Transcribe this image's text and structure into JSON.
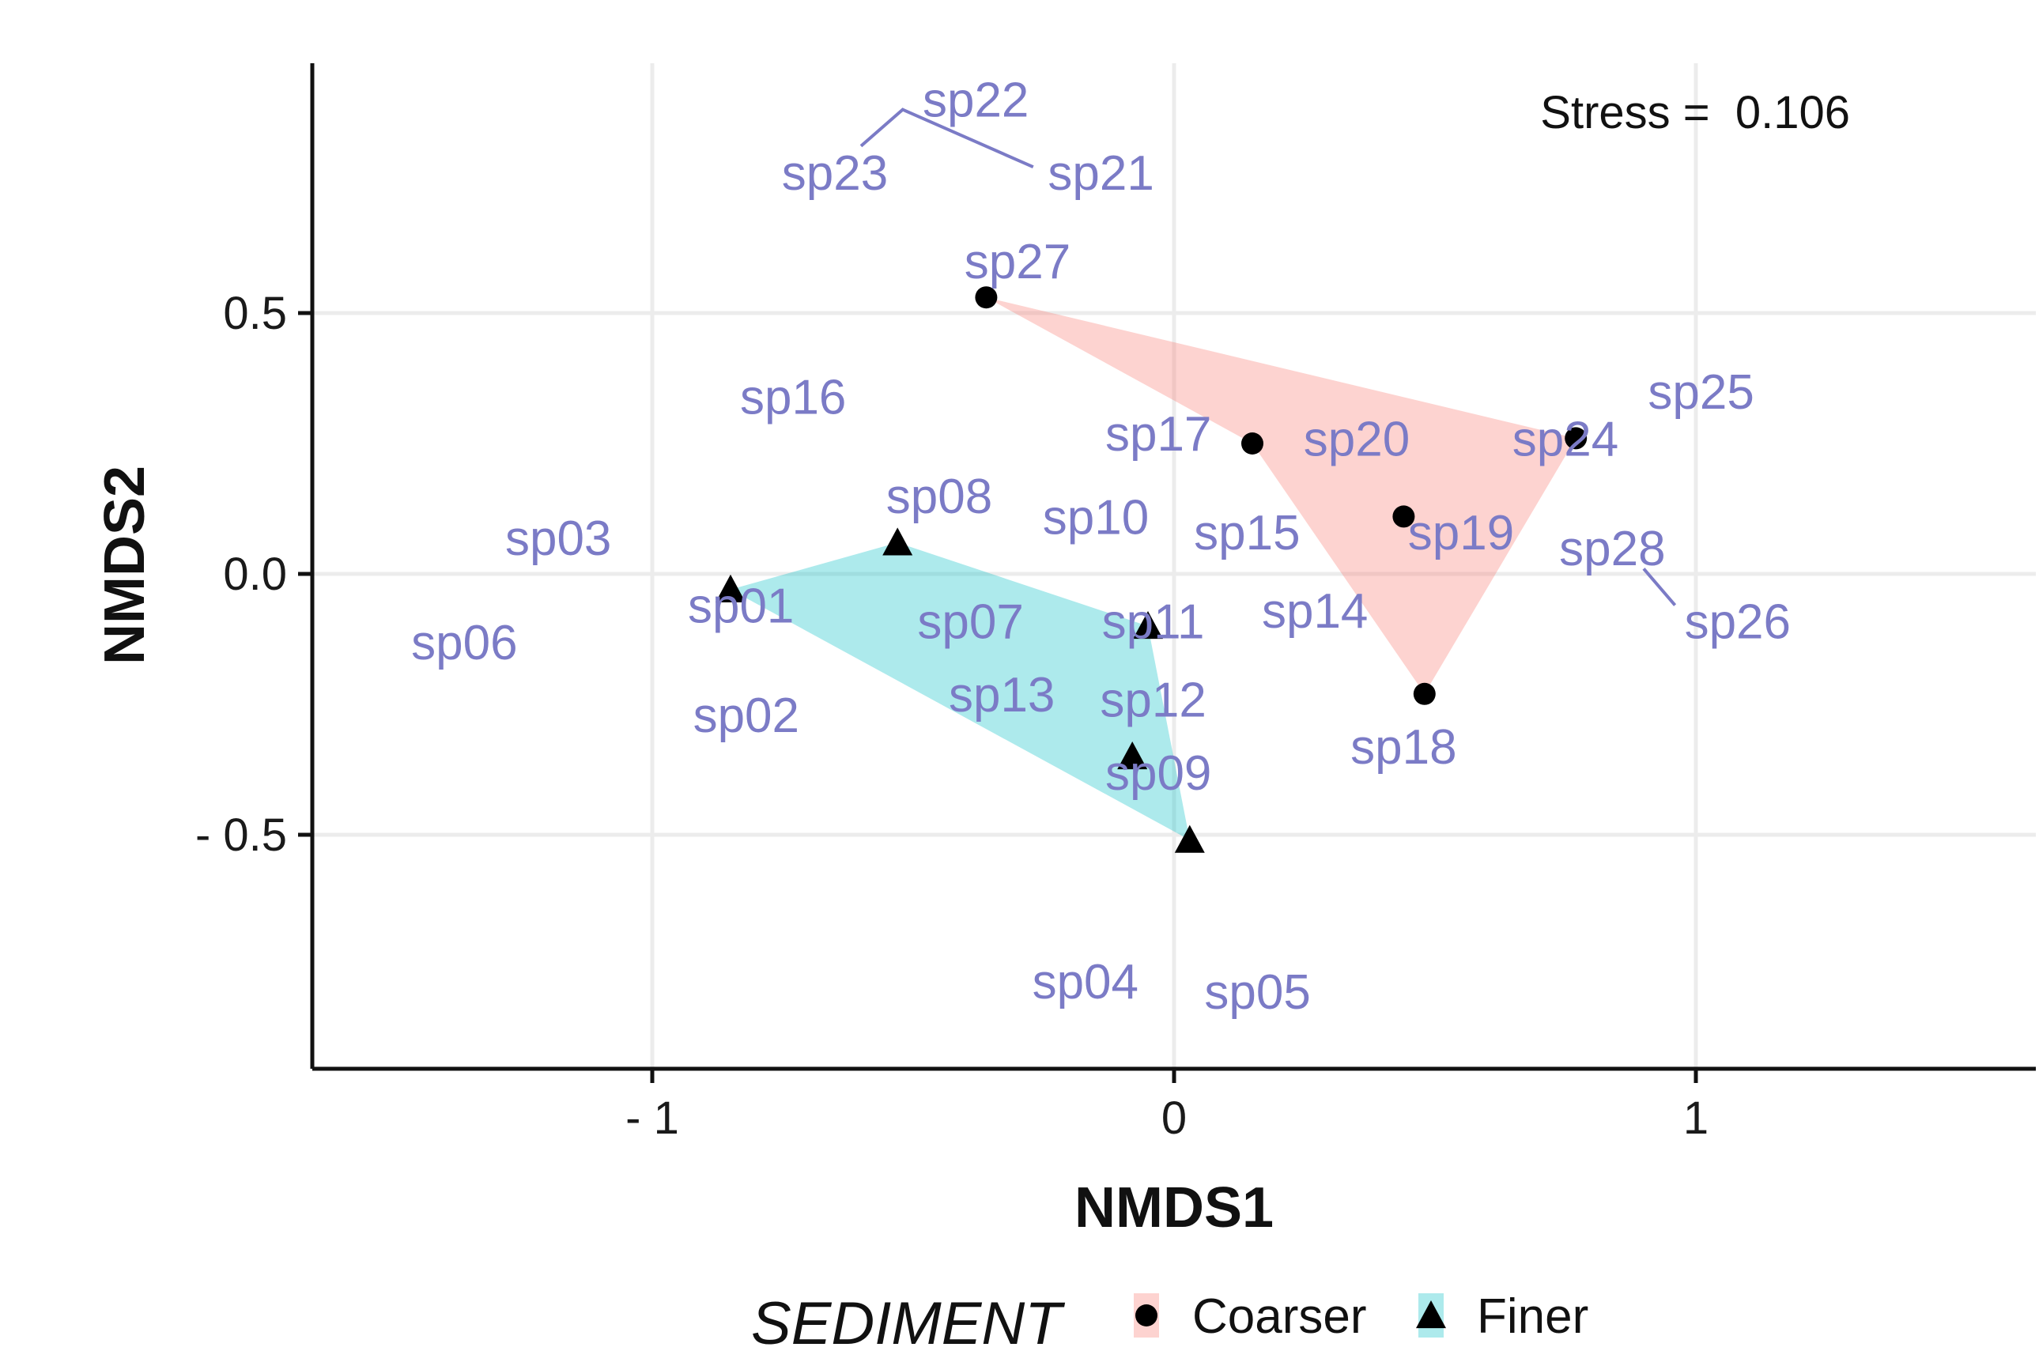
{
  "chart_data": {
    "type": "scatter",
    "title": "",
    "xlabel": "NMDS1",
    "ylabel": "NMDS2",
    "xlim": [
      -1.65,
      1.65
    ],
    "ylim": [
      -0.95,
      0.98
    ],
    "grid": true,
    "x_ticks": [
      {
        "value": -1,
        "label": "- 1"
      },
      {
        "value": 0,
        "label": "0"
      },
      {
        "value": 1,
        "label": "1"
      }
    ],
    "y_ticks": [
      {
        "value": 0.5,
        "label": "0.5"
      },
      {
        "value": 0.0,
        "label": "0.0"
      },
      {
        "value": -0.5,
        "label": "- 0.5"
      }
    ],
    "annotation": {
      "text": "Stress =  0.106",
      "placement": "top-right"
    },
    "legend": {
      "title": "SEDIMENT",
      "placement": "bottom",
      "entries": [
        {
          "label": "Coarser",
          "shape": "circle",
          "fill": "#f8766d"
        },
        {
          "label": "Finer",
          "shape": "triangle",
          "fill": "#00bfc4"
        }
      ]
    },
    "groups": [
      {
        "name": "Coarser",
        "shape": "circle",
        "hull_color": "#f8766d",
        "points": [
          {
            "x": -0.36,
            "y": 0.53
          },
          {
            "x": 0.15,
            "y": 0.25
          },
          {
            "x": 0.44,
            "y": 0.11
          },
          {
            "x": 0.77,
            "y": 0.26
          },
          {
            "x": 0.48,
            "y": -0.23
          }
        ],
        "hull": [
          [
            -0.36,
            0.53
          ],
          [
            0.77,
            0.26
          ],
          [
            0.48,
            -0.23
          ],
          [
            0.15,
            0.25
          ]
        ]
      },
      {
        "name": "Finer",
        "shape": "triangle",
        "hull_color": "#00bfc4",
        "points": [
          {
            "x": -0.85,
            "y": -0.03
          },
          {
            "x": -0.53,
            "y": 0.06
          },
          {
            "x": -0.05,
            "y": -0.1
          },
          {
            "x": -0.08,
            "y": -0.35
          },
          {
            "x": 0.03,
            "y": -0.51
          }
        ],
        "hull": [
          [
            -0.85,
            -0.03
          ],
          [
            -0.53,
            0.06
          ],
          [
            -0.05,
            -0.1
          ],
          [
            0.03,
            -0.51
          ]
        ]
      }
    ],
    "species": [
      {
        "label": "sp22",
        "x": -0.38,
        "y": 0.91
      },
      {
        "label": "sp23",
        "x": -0.65,
        "y": 0.77
      },
      {
        "label": "sp21",
        "x": -0.14,
        "y": 0.77
      },
      {
        "label": "sp27",
        "x": -0.3,
        "y": 0.6
      },
      {
        "label": "sp16",
        "x": -0.73,
        "y": 0.34
      },
      {
        "label": "sp25",
        "x": 1.01,
        "y": 0.35
      },
      {
        "label": "sp17",
        "x": -0.03,
        "y": 0.27
      },
      {
        "label": "sp20",
        "x": 0.35,
        "y": 0.26
      },
      {
        "label": "sp24",
        "x": 0.75,
        "y": 0.26
      },
      {
        "label": "sp08",
        "x": -0.45,
        "y": 0.15
      },
      {
        "label": "sp10",
        "x": -0.15,
        "y": 0.11
      },
      {
        "label": "sp15",
        "x": 0.14,
        "y": 0.08
      },
      {
        "label": "sp19",
        "x": 0.55,
        "y": 0.08
      },
      {
        "label": "sp28",
        "x": 0.84,
        "y": 0.05
      },
      {
        "label": "sp03",
        "x": -1.18,
        "y": 0.07
      },
      {
        "label": "sp01",
        "x": -0.83,
        "y": -0.06
      },
      {
        "label": "sp07",
        "x": -0.39,
        "y": -0.09
      },
      {
        "label": "sp11",
        "x": -0.04,
        "y": -0.09
      },
      {
        "label": "sp14",
        "x": 0.27,
        "y": -0.07
      },
      {
        "label": "sp26",
        "x": 1.08,
        "y": -0.09
      },
      {
        "label": "sp06",
        "x": -1.36,
        "y": -0.13
      },
      {
        "label": "sp13",
        "x": -0.33,
        "y": -0.23
      },
      {
        "label": "sp12",
        "x": -0.04,
        "y": -0.24
      },
      {
        "label": "sp02",
        "x": -0.82,
        "y": -0.27
      },
      {
        "label": "sp18",
        "x": 0.44,
        "y": -0.33
      },
      {
        "label": "sp09",
        "x": -0.03,
        "y": -0.38
      },
      {
        "label": "sp04",
        "x": -0.17,
        "y": -0.78
      },
      {
        "label": "sp05",
        "x": 0.16,
        "y": -0.8
      }
    ],
    "connectors": [
      {
        "from": [
          -0.6,
          0.82
        ],
        "via": [
          -0.52,
          0.89
        ],
        "to": [
          -0.27,
          0.78
        ]
      },
      {
        "from": [
          0.9,
          0.01
        ],
        "to": [
          0.96,
          -0.06
        ]
      }
    ]
  }
}
